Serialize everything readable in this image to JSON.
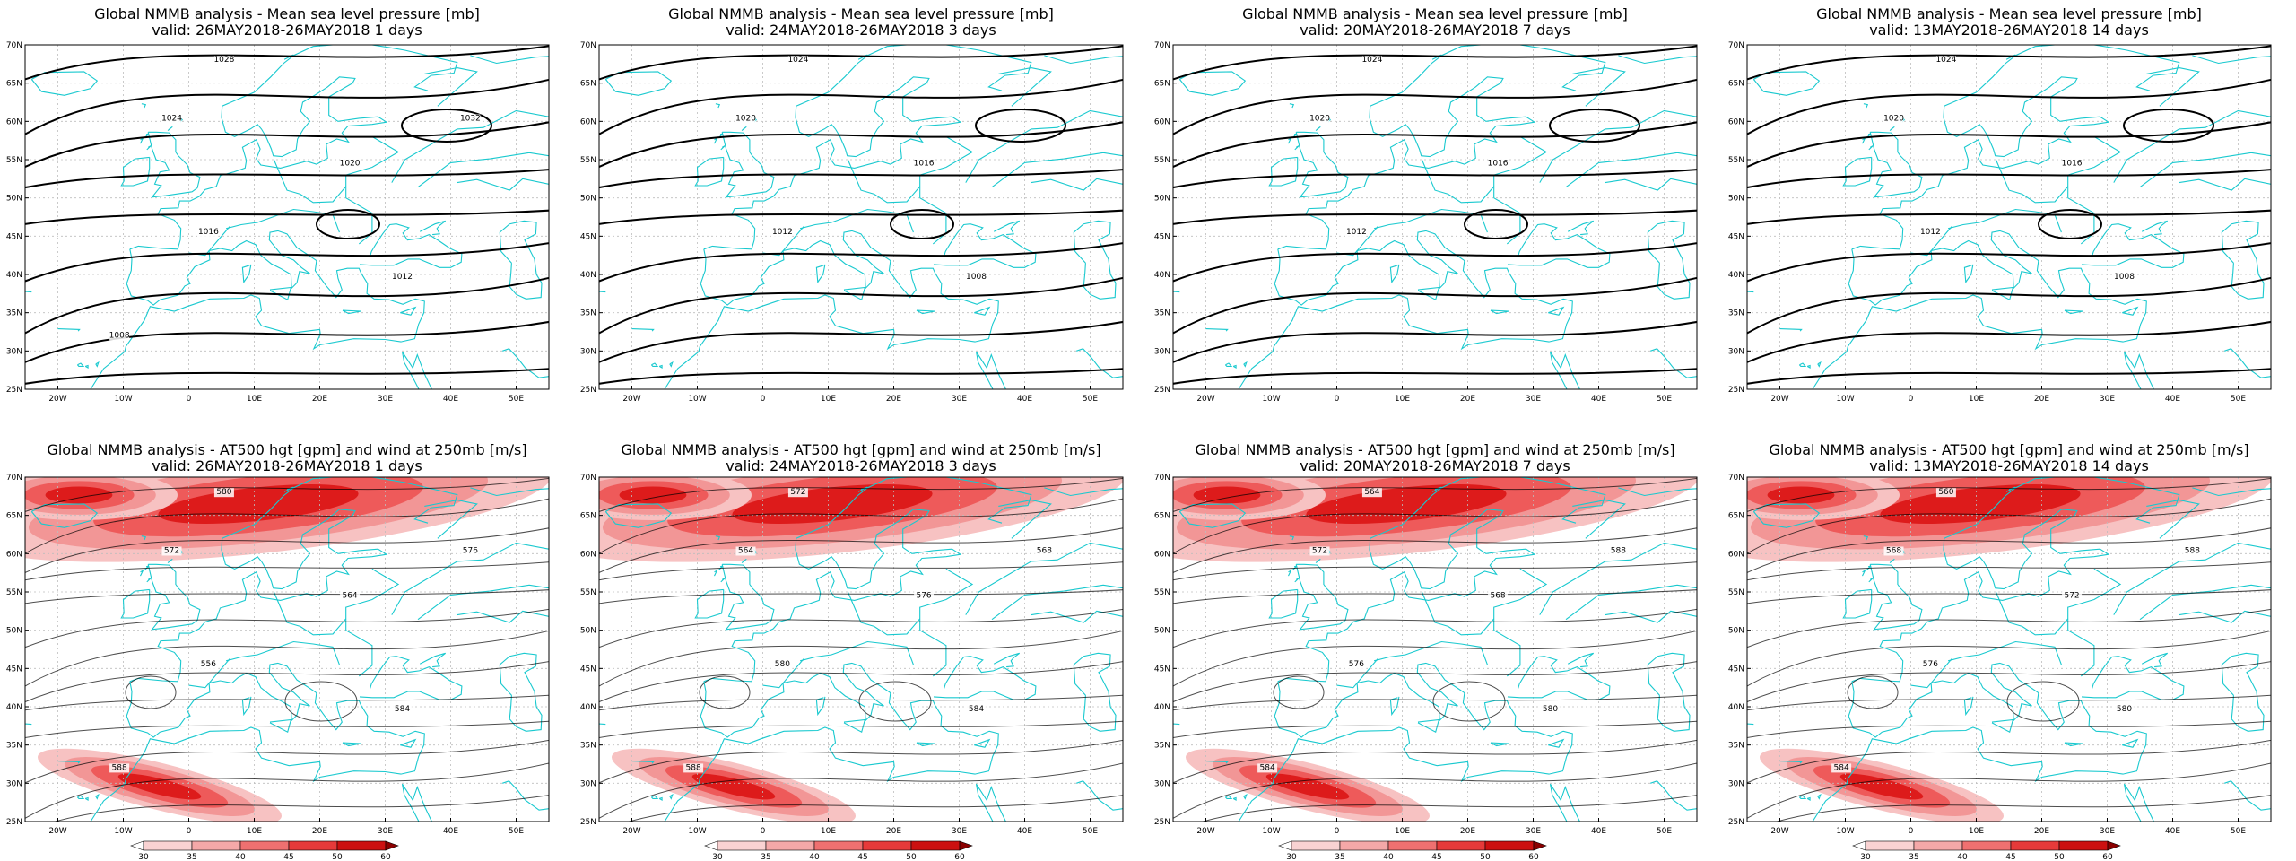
{
  "colors": {
    "coast": "#19c9cf",
    "contour": "#000000",
    "grid": "#bdbdbd",
    "wind": "#ee1515"
  },
  "axes": {
    "lat_labels": [
      "70N",
      "65N",
      "60N",
      "55N",
      "50N",
      "45N",
      "40N",
      "35N",
      "30N",
      "25N"
    ],
    "lon_labels": [
      "20W",
      "10W",
      "0",
      "10E",
      "20E",
      "30E",
      "40E",
      "50E"
    ]
  },
  "colorbar": {
    "values": [
      "30",
      "35",
      "40",
      "45",
      "50",
      "60"
    ]
  },
  "panels": [
    {
      "row": 1,
      "title": "Global NMMB analysis - Mean sea level pressure [mb]",
      "valid": "valid: 26MAY2018-26MAY2018   1 days",
      "labels": [
        "1028",
        "1024",
        "1020",
        "1016",
        "1012",
        "1008",
        "1032"
      ]
    },
    {
      "row": 1,
      "title": "Global NMMB analysis - Mean sea level pressure [mb]",
      "valid": "valid: 24MAY2018-26MAY2018   3 days",
      "labels": [
        "1024",
        "1020",
        "1016",
        "1012",
        "1008"
      ]
    },
    {
      "row": 1,
      "title": "Global NMMB analysis - Mean sea level pressure [mb]",
      "valid": "valid: 20MAY2018-26MAY2018   7 days",
      "labels": [
        "1024",
        "1020",
        "1016",
        "1012"
      ]
    },
    {
      "row": 1,
      "title": "Global NMMB analysis - Mean sea level pressure [mb]",
      "valid": "valid: 13MAY2018-26MAY2018   14 days",
      "labels": [
        "1024",
        "1020",
        "1016",
        "1012",
        "1008"
      ]
    },
    {
      "row": 2,
      "title": "Global NMMB analysis - AT500 hgt [gpm] and wind at 250mb [m/s]",
      "valid": "valid: 26MAY2018-26MAY2018   1 days",
      "labels": [
        "580",
        "572",
        "564",
        "556",
        "584",
        "588",
        "576"
      ]
    },
    {
      "row": 2,
      "title": "Global NMMB analysis - AT500 hgt [gpm] and wind at 250mb [m/s]",
      "valid": "valid: 24MAY2018-26MAY2018   3 days",
      "labels": [
        "572",
        "564",
        "576",
        "580",
        "584",
        "588",
        "568"
      ]
    },
    {
      "row": 2,
      "title": "Global NMMB analysis - AT500 hgt [gpm] and wind at 250mb [m/s]",
      "valid": "valid: 20MAY2018-26MAY2018   7 days",
      "labels": [
        "564",
        "572",
        "568",
        "576",
        "580",
        "584",
        "588"
      ]
    },
    {
      "row": 2,
      "title": "Global NMMB analysis - AT500 hgt [gpm] and wind at 250mb [m/s]",
      "valid": "valid: 13MAY2018-26MAY2018   14 days",
      "labels": [
        "560",
        "568",
        "572",
        "576",
        "580",
        "584",
        "588"
      ]
    }
  ]
}
